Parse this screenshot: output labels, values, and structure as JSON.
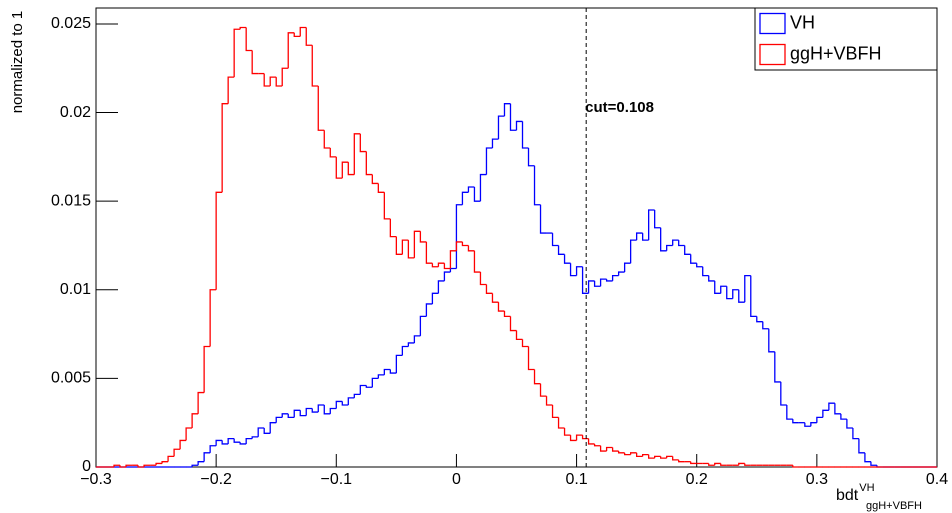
{
  "chart_data": {
    "type": "histogram",
    "y_label": "normalized to 1",
    "x_label": {
      "base": "bdt",
      "sup": "VH",
      "sub": "ggH+VBFH"
    },
    "cut": {
      "value": 0.108,
      "label": "cut=0.108"
    },
    "xlim": [
      -0.3,
      0.4
    ],
    "ylim": [
      0,
      0.0259
    ],
    "xticks": [
      {
        "value": -0.3,
        "label": "−0.3"
      },
      {
        "value": -0.2,
        "label": "−0.2"
      },
      {
        "value": -0.1,
        "label": "−0.1"
      },
      0,
      0.1,
      0.2,
      0.3,
      0.4
    ],
    "yticks": [
      0,
      0.005,
      0.01,
      0.015,
      0.02,
      0.025
    ],
    "legend": "top-right",
    "bins": [
      -0.3,
      -0.295,
      -0.29,
      -0.285,
      -0.28,
      -0.275,
      -0.27,
      -0.265,
      -0.26,
      -0.255,
      -0.25,
      -0.245,
      -0.24,
      -0.235,
      -0.23,
      -0.225,
      -0.22,
      -0.215,
      -0.21,
      -0.205,
      -0.2,
      -0.195,
      -0.19,
      -0.185,
      -0.18,
      -0.175,
      -0.17,
      -0.165,
      -0.16,
      -0.155,
      -0.15,
      -0.145,
      -0.14,
      -0.135,
      -0.13,
      -0.125,
      -0.12,
      -0.115,
      -0.11,
      -0.105,
      -0.1,
      -0.095,
      -0.09,
      -0.085,
      -0.08,
      -0.075,
      -0.07,
      -0.065,
      -0.06,
      -0.055,
      -0.05,
      -0.045,
      -0.04,
      -0.035,
      -0.03,
      -0.025,
      -0.02,
      -0.015,
      -0.01,
      -0.005,
      0,
      0.005,
      0.01,
      0.015,
      0.02,
      0.025,
      0.03,
      0.035,
      0.04,
      0.045,
      0.05,
      0.055,
      0.06,
      0.065,
      0.07,
      0.075,
      0.08,
      0.085,
      0.09,
      0.095,
      0.1,
      0.105,
      0.11,
      0.115,
      0.12,
      0.125,
      0.13,
      0.135,
      0.14,
      0.145,
      0.15,
      0.155,
      0.16,
      0.165,
      0.17,
      0.175,
      0.18,
      0.185,
      0.19,
      0.195,
      0.2,
      0.205,
      0.21,
      0.215,
      0.22,
      0.225,
      0.23,
      0.235,
      0.24,
      0.245,
      0.25,
      0.255,
      0.26,
      0.265,
      0.27,
      0.275,
      0.28,
      0.285,
      0.29,
      0.295,
      0.3,
      0.305,
      0.31,
      0.315,
      0.32,
      0.325,
      0.33,
      0.335,
      0.34,
      0.345,
      0.35,
      0.355,
      0.36,
      0.365,
      0.37,
      0.375,
      0.38,
      0.385,
      0.39,
      0.395,
      0.4
    ],
    "series": [
      {
        "name": "VH",
        "color": "#0000ff",
        "values": [
          0,
          0,
          0,
          0,
          0,
          0,
          0,
          0,
          0,
          0,
          0,
          0,
          0,
          0,
          0,
          0,
          0.0001,
          0.0003,
          0.0008,
          0.0012,
          0.0015,
          0.0013,
          0.0016,
          0.0014,
          0.0013,
          0.0016,
          0.0017,
          0.0022,
          0.0019,
          0.0025,
          0.0028,
          0.003,
          0.0028,
          0.0032,
          0.0029,
          0.0033,
          0.0031,
          0.0035,
          0.003,
          0.0033,
          0.0037,
          0.0035,
          0.0039,
          0.0041,
          0.0046,
          0.0045,
          0.005,
          0.0052,
          0.0055,
          0.0053,
          0.0063,
          0.0068,
          0.007,
          0.0074,
          0.0085,
          0.0092,
          0.0098,
          0.0105,
          0.011,
          0.0112,
          0.0148,
          0.0155,
          0.0158,
          0.015,
          0.0165,
          0.018,
          0.0185,
          0.0198,
          0.0205,
          0.019,
          0.0195,
          0.018,
          0.017,
          0.0148,
          0.0132,
          0.0132,
          0.0125,
          0.012,
          0.0115,
          0.0108,
          0.0113,
          0.0098,
          0.0105,
          0.0102,
          0.0106,
          0.0105,
          0.0108,
          0.011,
          0.0115,
          0.0128,
          0.0132,
          0.0128,
          0.0145,
          0.0135,
          0.0122,
          0.0125,
          0.0128,
          0.0125,
          0.012,
          0.0115,
          0.0113,
          0.0108,
          0.0105,
          0.0098,
          0.0102,
          0.0095,
          0.01,
          0.0093,
          0.0108,
          0.0085,
          0.0082,
          0.0078,
          0.0065,
          0.0048,
          0.0035,
          0.0027,
          0.0025,
          0.0025,
          0.0023,
          0.0025,
          0.0028,
          0.0032,
          0.0036,
          0.003,
          0.0027,
          0.0022,
          0.0016,
          0.0008,
          0.0003,
          0.0001,
          0,
          0,
          0,
          0,
          0,
          0,
          0,
          0,
          0,
          0
        ]
      },
      {
        "name": "ggH+VBFH",
        "color": "#ff0000",
        "values": [
          0,
          0,
          0,
          0.0001,
          0,
          0.0001,
          0.0001,
          0,
          0.0001,
          0.0001,
          0.0002,
          0.0003,
          0.0006,
          0.001,
          0.0015,
          0.0022,
          0.003,
          0.0042,
          0.0068,
          0.01,
          0.0155,
          0.0205,
          0.022,
          0.0247,
          0.0248,
          0.0235,
          0.0222,
          0.0222,
          0.0215,
          0.022,
          0.0215,
          0.0225,
          0.0245,
          0.0243,
          0.0248,
          0.0238,
          0.0215,
          0.019,
          0.018,
          0.0175,
          0.0163,
          0.0172,
          0.0165,
          0.0188,
          0.0178,
          0.0165,
          0.016,
          0.0155,
          0.014,
          0.013,
          0.012,
          0.0128,
          0.0118,
          0.0133,
          0.0127,
          0.0115,
          0.0113,
          0.0115,
          0.0112,
          0.0122,
          0.0127,
          0.0125,
          0.0122,
          0.011,
          0.0103,
          0.0098,
          0.0093,
          0.0088,
          0.0085,
          0.0077,
          0.0072,
          0.0068,
          0.0055,
          0.0047,
          0.004,
          0.0035,
          0.0028,
          0.0022,
          0.0018,
          0.0015,
          0.0018,
          0.0016,
          0.0013,
          0.0012,
          0.0009,
          0.0011,
          0.0009,
          0.0008,
          0.0007,
          0.0008,
          0.0006,
          0.0007,
          0.0005,
          0.0006,
          0.0005,
          0.0006,
          0.0004,
          0.0003,
          0.0003,
          0.0002,
          0.0002,
          0.0002,
          0.0001,
          0.0002,
          0.0001,
          0.0001,
          0.0001,
          0.0002,
          0.0001,
          0.0001,
          0.0001,
          0.0001,
          0.0001,
          0.0001,
          0.0001,
          0.0001,
          0,
          0,
          0,
          0,
          0,
          0,
          0,
          0,
          0,
          0,
          0,
          0,
          0,
          0,
          0,
          0,
          0,
          0,
          0,
          0,
          0,
          0,
          0,
          0
        ]
      }
    ]
  }
}
